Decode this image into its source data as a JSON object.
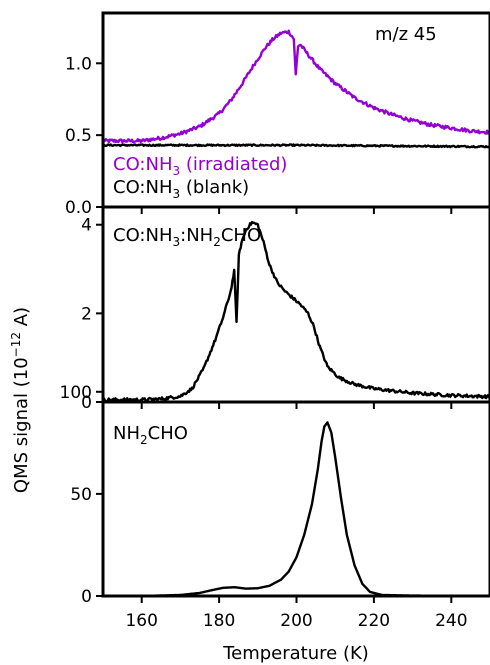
{
  "chart_data": [
    {
      "type": "line",
      "panel": "top",
      "annotation": "m/z 45",
      "xlabel": "Temperature (K)",
      "xlim": [
        150,
        250
      ],
      "ylim": [
        0,
        1.35
      ],
      "yticks": [
        0.0,
        0.5,
        1.0
      ],
      "ytick_labels": [
        "0.0",
        "0.5",
        "1.0"
      ],
      "legend_placement": "bottom-left",
      "series": [
        {
          "name": "CO:NH3 (irradiated)",
          "color": "#9400D3",
          "noise": 0.012,
          "x": [
            150,
            160,
            165,
            170,
            175,
            180,
            183,
            186,
            189,
            192,
            194,
            196,
            198,
            199.3,
            199.8,
            200.4,
            201,
            203,
            206,
            210,
            215,
            220,
            225,
            230,
            235,
            240,
            245,
            250
          ],
          "y": [
            0.46,
            0.46,
            0.48,
            0.51,
            0.56,
            0.65,
            0.74,
            0.86,
            0.99,
            1.11,
            1.17,
            1.21,
            1.22,
            1.17,
            0.92,
            1.12,
            1.13,
            1.06,
            0.96,
            0.86,
            0.76,
            0.69,
            0.64,
            0.6,
            0.57,
            0.55,
            0.53,
            0.52
          ]
        },
        {
          "name": "CO:NH3 (blank)",
          "color": "#000000",
          "noise": 0.005,
          "x": [
            150,
            200,
            250
          ],
          "y": [
            0.43,
            0.43,
            0.42
          ]
        }
      ]
    },
    {
      "type": "line",
      "panel": "middle",
      "annotation_parts": [
        "CO:NH",
        "3",
        ":NH",
        "2",
        "CHO"
      ],
      "xlim": [
        150,
        250
      ],
      "ylim": [
        0,
        4.4
      ],
      "yticks": [
        0,
        2,
        4
      ],
      "ytick_labels": [
        "0",
        "2",
        "4"
      ],
      "series": [
        {
          "name": "CO:NH3:NH2CHO",
          "color": "#000000",
          "noise": 0.035,
          "x": [
            150,
            160,
            165,
            170,
            173,
            176,
            179,
            181,
            183,
            183.9,
            184.5,
            185.1,
            185.8,
            187,
            188.5,
            190,
            191.5,
            193,
            195,
            197,
            199,
            201,
            203,
            204.5,
            206,
            208,
            211,
            215,
            220,
            225,
            230,
            240,
            250
          ],
          "y": [
            0.05,
            0.05,
            0.07,
            0.13,
            0.3,
            0.75,
            1.4,
            1.9,
            2.5,
            2.95,
            1.8,
            3.3,
            3.6,
            3.9,
            4.05,
            4.0,
            3.6,
            3.1,
            2.7,
            2.5,
            2.35,
            2.2,
            2.0,
            1.7,
            1.25,
            0.8,
            0.55,
            0.4,
            0.3,
            0.25,
            0.2,
            0.15,
            0.12
          ]
        }
      ]
    },
    {
      "type": "line",
      "panel": "bottom",
      "annotation_parts": [
        "NH",
        "2",
        "CHO"
      ],
      "ylabel_parts": [
        "QMS signal (10",
        "−12",
        " A)"
      ],
      "xlabel": "Temperature (K)",
      "xlim": [
        150,
        250
      ],
      "ylim": [
        0,
        95
      ],
      "yticks": [
        0,
        50,
        100
      ],
      "ytick_labels": [
        "0",
        "50",
        "100"
      ],
      "xticks": [
        160,
        180,
        200,
        220,
        240
      ],
      "xtick_labels": [
        "160",
        "180",
        "200",
        "220",
        "240"
      ],
      "series": [
        {
          "name": "NH2CHO",
          "color": "#000000",
          "noise": 0,
          "x": [
            150,
            160,
            170,
            175,
            178,
            181,
            184,
            187,
            190,
            193,
            196,
            198,
            200,
            202,
            204,
            205.5,
            206.5,
            207.2,
            208,
            209,
            210,
            211.5,
            213,
            215,
            217,
            219,
            222,
            230,
            250
          ],
          "y": [
            0,
            0,
            0.5,
            1.5,
            2.8,
            4.0,
            4.3,
            3.6,
            3.8,
            5.0,
            8.0,
            12,
            19,
            30,
            45,
            62,
            76,
            83,
            85,
            80,
            68,
            48,
            30,
            15,
            6,
            2,
            0.5,
            0.2,
            0
          ]
        }
      ]
    }
  ],
  "legend": {
    "irradiated_parts": [
      "CO:NH",
      "3",
      " (irradiated)"
    ],
    "blank_parts": [
      "CO:NH",
      "3",
      " (blank)"
    ]
  }
}
